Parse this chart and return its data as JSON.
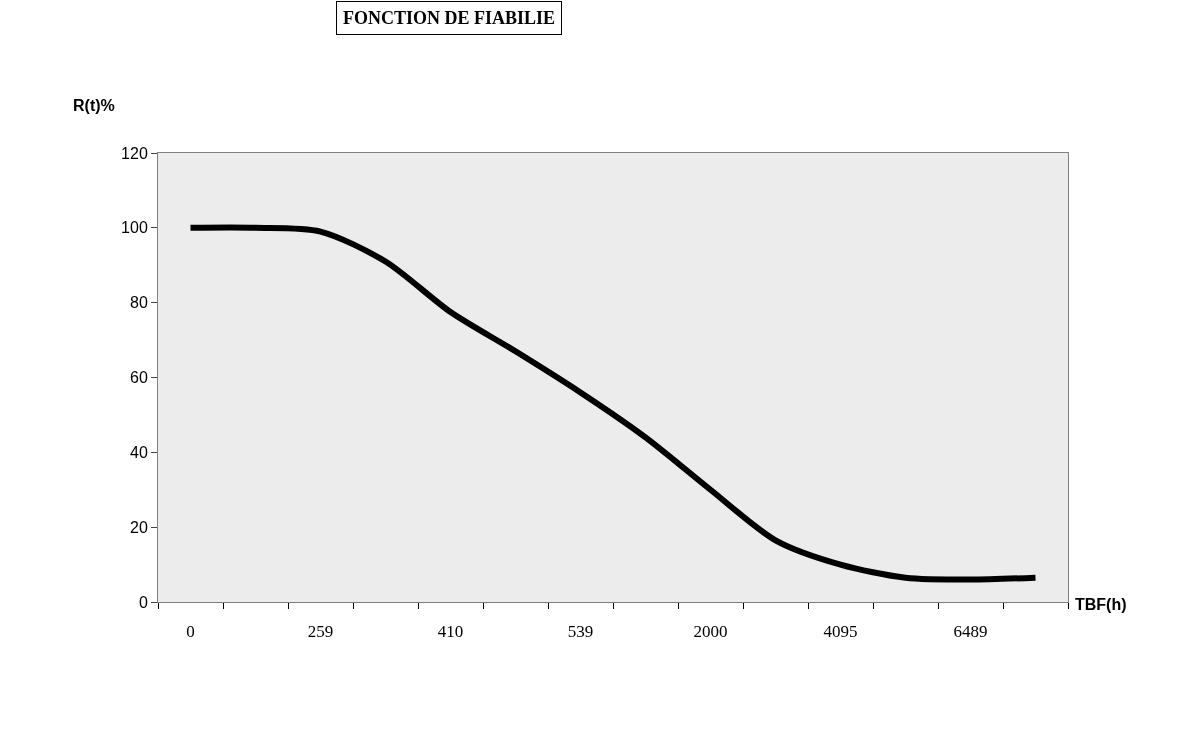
{
  "chart_data": {
    "type": "line",
    "title": "FONCTION DE FIABILIE",
    "xlabel": "TBF(h)",
    "ylabel": "R(t)%",
    "categories": [
      "0",
      null,
      "259",
      null,
      "410",
      null,
      "539",
      null,
      "2000",
      null,
      "4095",
      null,
      "6489",
      null
    ],
    "series": [
      {
        "color": "#000000",
        "values": [
          100,
          100,
          99,
          91,
          77.5,
          67,
          56,
          44,
          30,
          16.5,
          10,
          6.5,
          6,
          6.5
        ]
      }
    ],
    "ylim": [
      0,
      120
    ],
    "yticks": [
      0,
      20,
      40,
      60,
      80,
      100,
      120
    ],
    "marker": "none",
    "line_style": "solid"
  }
}
